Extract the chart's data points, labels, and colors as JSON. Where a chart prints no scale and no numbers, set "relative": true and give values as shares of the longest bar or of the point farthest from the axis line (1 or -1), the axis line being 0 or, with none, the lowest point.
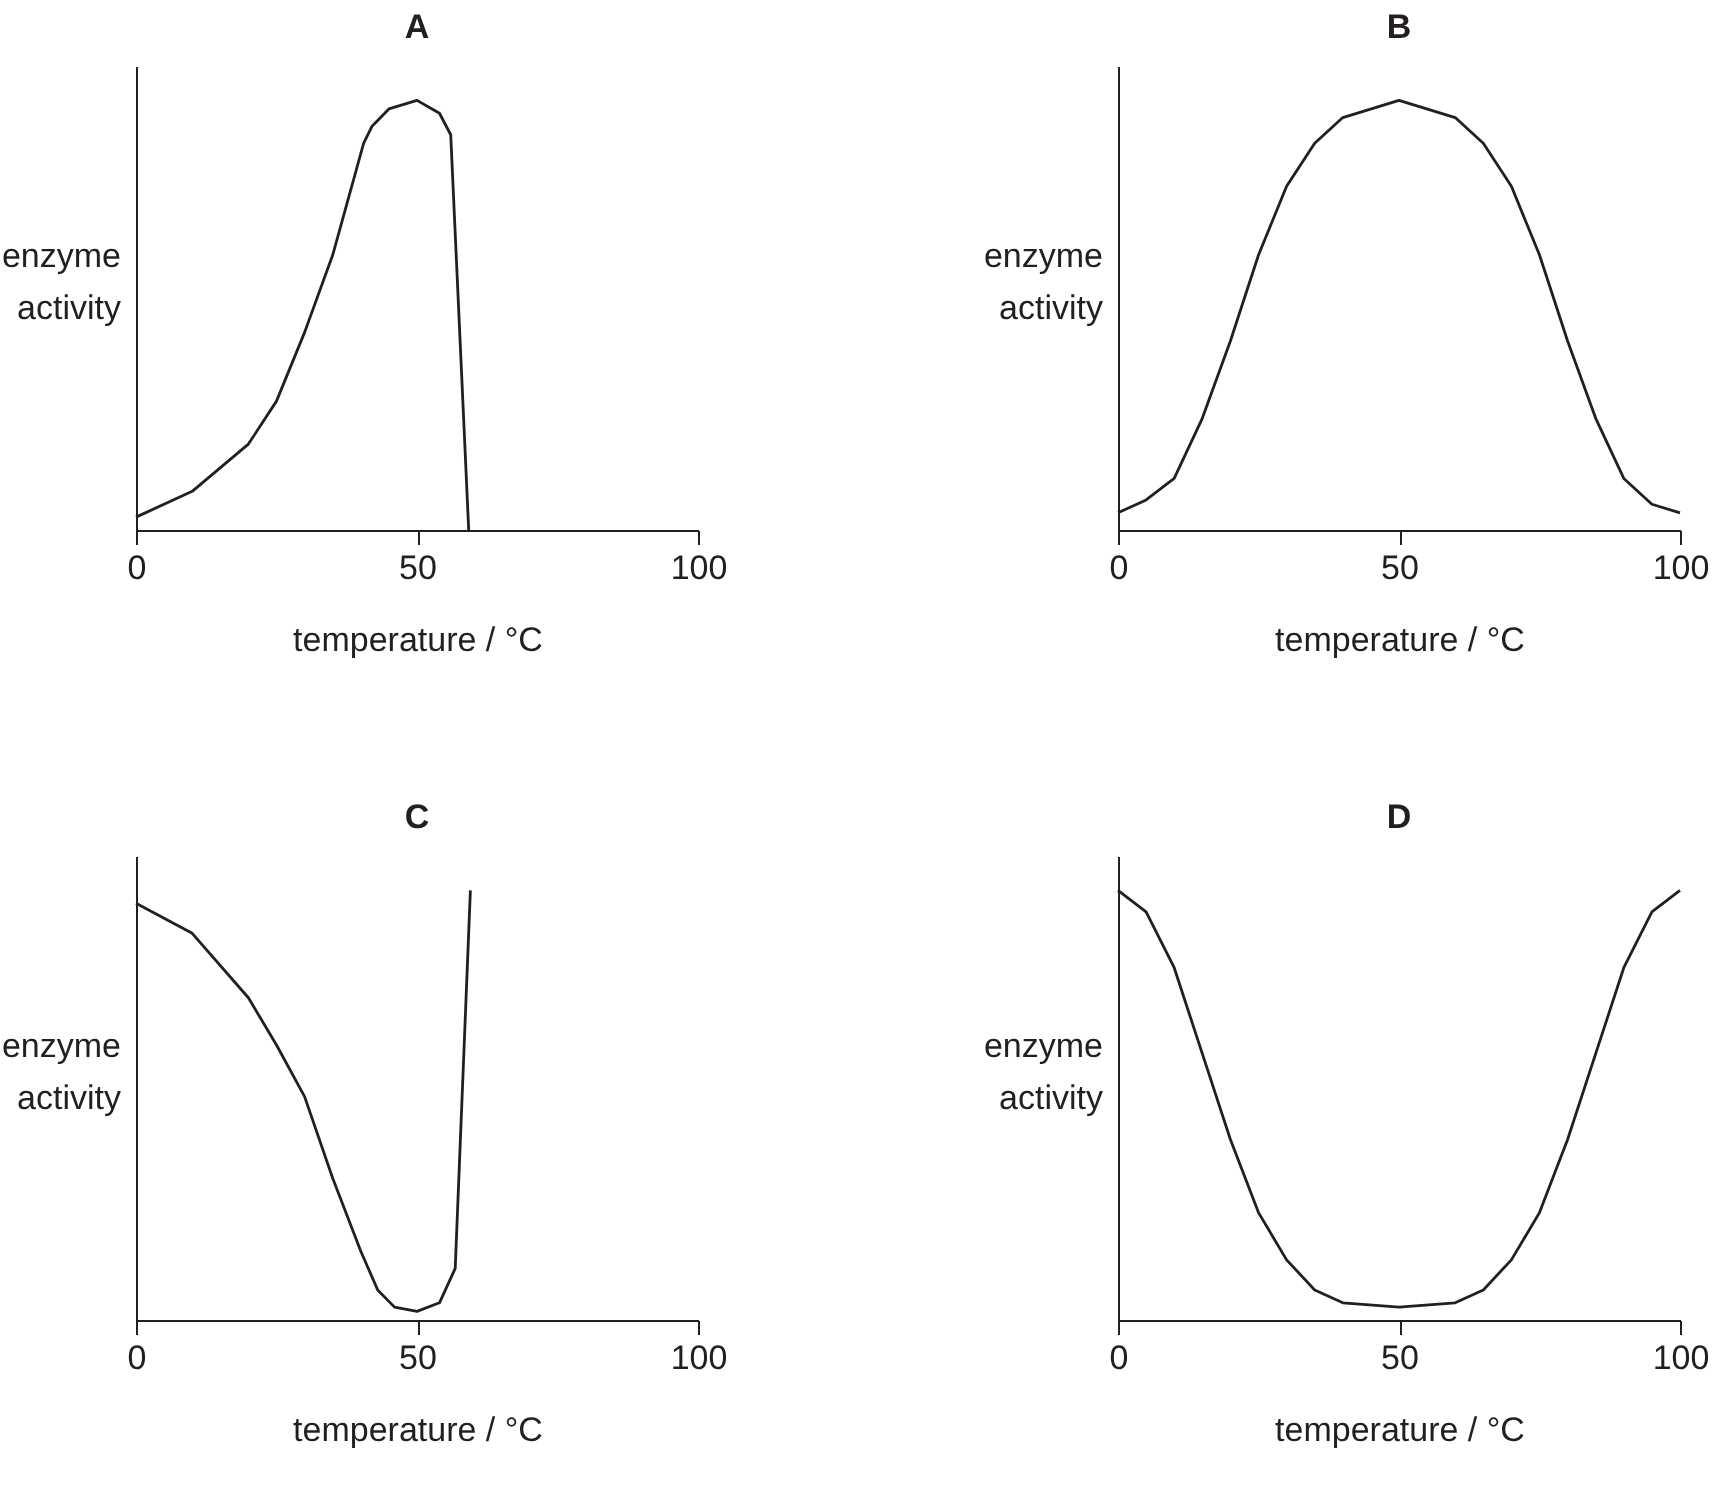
{
  "chart_data": [
    {
      "type": "line",
      "title": "A",
      "xlabel": "temperature / °C",
      "ylabel": "enzyme activity",
      "relative": true,
      "xlim": [
        0,
        100
      ],
      "xticks": [
        0,
        50,
        100
      ],
      "x": [
        0,
        10,
        20,
        25,
        30,
        35,
        40.5,
        42,
        45,
        50,
        54,
        56,
        59.2
      ],
      "series": [
        {
          "color": "#231f20",
          "values": [
            0.03,
            0.09,
            0.2,
            0.3,
            0.46,
            0.64,
            0.9,
            0.94,
            0.98,
            1,
            0.97,
            0.92,
            0
          ]
        }
      ]
    },
    {
      "type": "line",
      "title": "B",
      "xlabel": "temperature / °C",
      "ylabel": "enzyme activity",
      "relative": true,
      "xlim": [
        0,
        100
      ],
      "xticks": [
        0,
        50,
        100
      ],
      "x": [
        0,
        5,
        10,
        15,
        20,
        25,
        30,
        35,
        40,
        50,
        60,
        65,
        70,
        75,
        80,
        85,
        90,
        95,
        100
      ],
      "series": [
        {
          "color": "#231f20",
          "values": [
            0.04,
            0.07,
            0.12,
            0.26,
            0.44,
            0.64,
            0.8,
            0.9,
            0.96,
            1,
            0.96,
            0.9,
            0.8,
            0.64,
            0.44,
            0.26,
            0.12,
            0.06,
            0.04
          ]
        }
      ]
    },
    {
      "type": "line",
      "title": "C",
      "xlabel": "temperature / °C",
      "ylabel": "enzyme activity",
      "relative": true,
      "xlim": [
        0,
        100
      ],
      "xticks": [
        0,
        50,
        100
      ],
      "x": [
        0,
        10,
        20,
        25,
        30,
        35,
        40,
        43,
        46,
        50,
        54,
        56.8,
        59.5
      ],
      "series": [
        {
          "color": "#231f20",
          "values": [
            0.97,
            0.9,
            0.75,
            0.64,
            0.52,
            0.33,
            0.16,
            0.07,
            0.03,
            0.02,
            0.04,
            0.12,
            1
          ]
        }
      ]
    },
    {
      "type": "line",
      "title": "D",
      "xlabel": "temperature / °C",
      "ylabel": "enzyme activity",
      "relative": true,
      "xlim": [
        0,
        100
      ],
      "xticks": [
        0,
        50,
        100
      ],
      "x": [
        0,
        5,
        10,
        15,
        20,
        25,
        30,
        35,
        40,
        50,
        60,
        65,
        70,
        75,
        80,
        85,
        90,
        95,
        100
      ],
      "series": [
        {
          "color": "#231f20",
          "values": [
            1,
            0.95,
            0.82,
            0.62,
            0.42,
            0.25,
            0.14,
            0.07,
            0.04,
            0.03,
            0.04,
            0.07,
            0.14,
            0.25,
            0.42,
            0.62,
            0.82,
            0.95,
            1
          ]
        }
      ]
    }
  ]
}
